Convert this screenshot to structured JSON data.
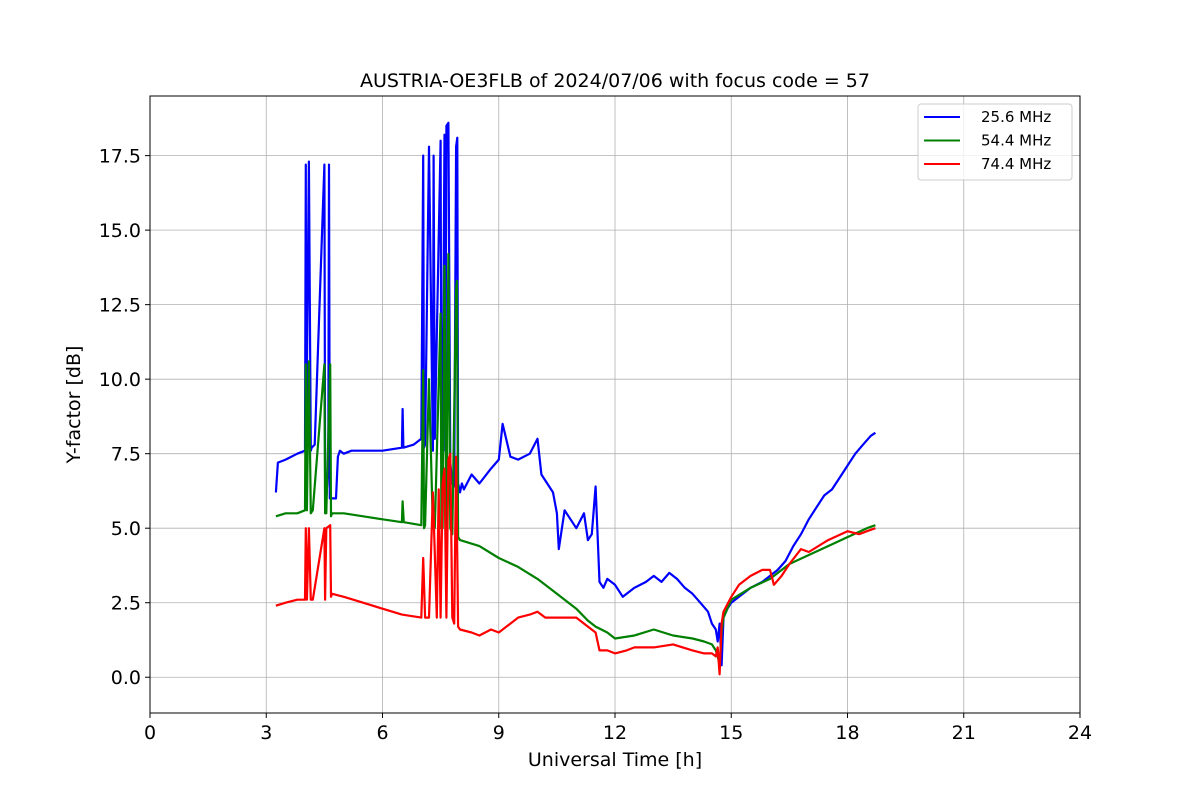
{
  "chart_data": {
    "type": "line",
    "title": "AUSTRIA-OE3FLB of 2024/07/06 with focus code = 57",
    "xlabel": "Universal Time [h]",
    "ylabel": "Y-factor [dB]",
    "xlim": [
      0,
      24
    ],
    "ylim": [
      -1.2,
      19.5
    ],
    "xticks": [
      0,
      3,
      6,
      9,
      12,
      15,
      18,
      21,
      24
    ],
    "xtick_labels": [
      "0",
      "3",
      "6",
      "9",
      "12",
      "15",
      "18",
      "21",
      "24"
    ],
    "yticks": [
      0.0,
      2.5,
      5.0,
      7.5,
      10.0,
      12.5,
      15.0,
      17.5
    ],
    "ytick_labels": [
      "0.0",
      "2.5",
      "5.0",
      "7.5",
      "10.0",
      "12.5",
      "15.0",
      "17.5"
    ],
    "grid": true,
    "legend_position": "top-right",
    "series": [
      {
        "name": "25.6 MHz",
        "color": "#0000ff",
        "x": [
          3.25,
          3.3,
          3.5,
          3.8,
          4.0,
          4.02,
          4.03,
          4.1,
          4.15,
          4.17,
          4.25,
          4.5,
          4.52,
          4.55,
          4.6,
          4.62,
          4.64,
          4.8,
          4.85,
          4.9,
          5.0,
          5.2,
          5.5,
          6.0,
          6.5,
          6.52,
          6.54,
          6.8,
          7.0,
          7.05,
          7.07,
          7.1,
          7.2,
          7.3,
          7.32,
          7.35,
          7.5,
          7.52,
          7.55,
          7.6,
          7.62,
          7.65,
          7.7,
          7.75,
          7.8,
          7.85,
          7.9,
          7.93,
          7.95,
          8.0,
          8.05,
          8.1,
          8.3,
          8.5,
          8.8,
          9.0,
          9.1,
          9.3,
          9.5,
          9.8,
          10.0,
          10.1,
          10.2,
          10.4,
          10.5,
          10.55,
          10.7,
          10.9,
          11.0,
          11.2,
          11.3,
          11.4,
          11.5,
          11.6,
          11.7,
          11.8,
          12.0,
          12.2,
          12.5,
          12.8,
          13.0,
          13.2,
          13.4,
          13.6,
          13.8,
          14.0,
          14.2,
          14.4,
          14.5,
          14.6,
          14.65,
          14.7,
          14.75,
          14.8,
          14.9,
          15.0,
          15.2,
          15.5,
          15.8,
          16.0,
          16.2,
          16.4,
          16.6,
          16.8,
          17.0,
          17.2,
          17.4,
          17.6,
          17.8,
          18.0,
          18.2,
          18.4,
          18.6,
          18.72
        ],
        "y": [
          6.2,
          7.2,
          7.3,
          7.5,
          7.6,
          17.2,
          7.7,
          17.3,
          7.6,
          7.7,
          7.8,
          17.2,
          7.0,
          6.0,
          7.1,
          17.2,
          6.0,
          6.0,
          7.4,
          7.6,
          7.5,
          7.6,
          7.6,
          7.6,
          7.7,
          9.0,
          7.7,
          7.8,
          8.0,
          17.5,
          7.7,
          7.8,
          17.8,
          7.6,
          17.5,
          8.0,
          18.0,
          7.6,
          7.8,
          18.2,
          7.6,
          18.5,
          18.6,
          7.2,
          6.5,
          6.4,
          17.8,
          18.1,
          6.5,
          6.2,
          6.5,
          6.3,
          6.8,
          6.5,
          7.0,
          7.3,
          8.5,
          7.4,
          7.3,
          7.5,
          8.0,
          6.8,
          6.6,
          6.2,
          5.5,
          4.3,
          5.6,
          5.2,
          5.0,
          5.5,
          4.6,
          4.8,
          6.4,
          3.2,
          3.0,
          3.3,
          3.1,
          2.7,
          3.0,
          3.2,
          3.4,
          3.2,
          3.5,
          3.3,
          3.0,
          2.8,
          2.5,
          2.2,
          1.8,
          1.6,
          1.2,
          1.8,
          0.4,
          2.0,
          2.3,
          2.5,
          2.7,
          3.0,
          3.2,
          3.4,
          3.6,
          3.9,
          4.4,
          4.8,
          5.3,
          5.7,
          6.1,
          6.3,
          6.7,
          7.1,
          7.5,
          7.8,
          8.1,
          8.2
        ]
      },
      {
        "name": "54.4 MHz",
        "color": "#008000",
        "x": [
          3.25,
          3.5,
          3.8,
          4.0,
          4.02,
          4.05,
          4.1,
          4.15,
          4.2,
          4.5,
          4.52,
          4.55,
          4.65,
          4.67,
          4.7,
          5.0,
          5.5,
          6.0,
          6.5,
          6.52,
          6.55,
          7.0,
          7.05,
          7.07,
          7.1,
          7.2,
          7.3,
          7.35,
          7.5,
          7.52,
          7.55,
          7.6,
          7.65,
          7.7,
          7.75,
          7.8,
          7.9,
          7.92,
          7.95,
          8.0,
          8.5,
          9.0,
          9.5,
          10.0,
          10.5,
          10.8,
          11.0,
          11.3,
          11.5,
          11.8,
          12.0,
          12.5,
          13.0,
          13.5,
          14.0,
          14.3,
          14.5,
          14.6,
          14.65,
          14.7,
          14.75,
          14.8,
          15.0,
          15.5,
          16.0,
          16.5,
          17.0,
          17.5,
          18.0,
          18.5,
          18.72
        ],
        "y": [
          5.4,
          5.5,
          5.5,
          5.6,
          10.5,
          5.6,
          10.6,
          5.5,
          5.6,
          10.5,
          5.5,
          5.5,
          10.5,
          5.4,
          5.5,
          5.5,
          5.4,
          5.3,
          5.2,
          5.9,
          5.2,
          5.1,
          10.3,
          5.0,
          5.1,
          10.0,
          5.0,
          5.0,
          12.2,
          5.0,
          5.0,
          13.8,
          5.0,
          14.2,
          5.0,
          4.8,
          13.0,
          13.3,
          4.7,
          4.6,
          4.4,
          4.0,
          3.7,
          3.3,
          2.8,
          2.5,
          2.3,
          1.9,
          1.7,
          1.5,
          1.3,
          1.4,
          1.6,
          1.4,
          1.3,
          1.2,
          1.1,
          0.9,
          0.7,
          0.4,
          1.5,
          2.0,
          2.6,
          3.0,
          3.3,
          3.8,
          4.1,
          4.4,
          4.7,
          5.0,
          5.1
        ]
      },
      {
        "name": "74.4 MHz",
        "color": "#ff0000",
        "x": [
          3.25,
          3.5,
          3.8,
          4.0,
          4.02,
          4.05,
          4.1,
          4.15,
          4.2,
          4.5,
          4.52,
          4.55,
          4.65,
          4.67,
          4.7,
          5.0,
          5.5,
          6.0,
          6.5,
          7.0,
          7.05,
          7.1,
          7.2,
          7.3,
          7.4,
          7.45,
          7.5,
          7.55,
          7.6,
          7.65,
          7.7,
          7.75,
          7.8,
          7.85,
          7.9,
          7.95,
          8.0,
          8.3,
          8.5,
          8.8,
          9.0,
          9.3,
          9.5,
          9.8,
          10.0,
          10.2,
          10.5,
          11.0,
          11.3,
          11.5,
          11.6,
          11.8,
          12.0,
          12.3,
          12.5,
          13.0,
          13.5,
          14.0,
          14.3,
          14.5,
          14.6,
          14.65,
          14.7,
          14.75,
          14.8,
          15.0,
          15.2,
          15.5,
          15.8,
          16.0,
          16.1,
          16.3,
          16.5,
          16.8,
          17.0,
          17.5,
          18.0,
          18.3,
          18.5,
          18.72
        ],
        "y": [
          2.4,
          2.5,
          2.6,
          2.6,
          5.0,
          2.6,
          5.0,
          2.6,
          2.6,
          5.0,
          2.6,
          5.0,
          5.1,
          2.7,
          2.8,
          2.7,
          2.5,
          2.3,
          2.1,
          2.0,
          4.0,
          2.0,
          2.0,
          6.2,
          2.0,
          6.3,
          2.0,
          6.5,
          7.0,
          2.0,
          7.3,
          7.5,
          2.0,
          1.8,
          7.4,
          1.7,
          1.6,
          1.5,
          1.4,
          1.6,
          1.5,
          1.8,
          2.0,
          2.1,
          2.2,
          2.0,
          2.0,
          2.0,
          1.7,
          1.5,
          0.9,
          0.9,
          0.8,
          0.9,
          1.0,
          1.0,
          1.1,
          0.9,
          0.8,
          0.8,
          0.7,
          1.0,
          0.1,
          1.8,
          2.2,
          2.7,
          3.1,
          3.4,
          3.6,
          3.6,
          3.1,
          3.4,
          3.8,
          4.3,
          4.2,
          4.6,
          4.9,
          4.8,
          4.9,
          5.0
        ]
      }
    ]
  }
}
